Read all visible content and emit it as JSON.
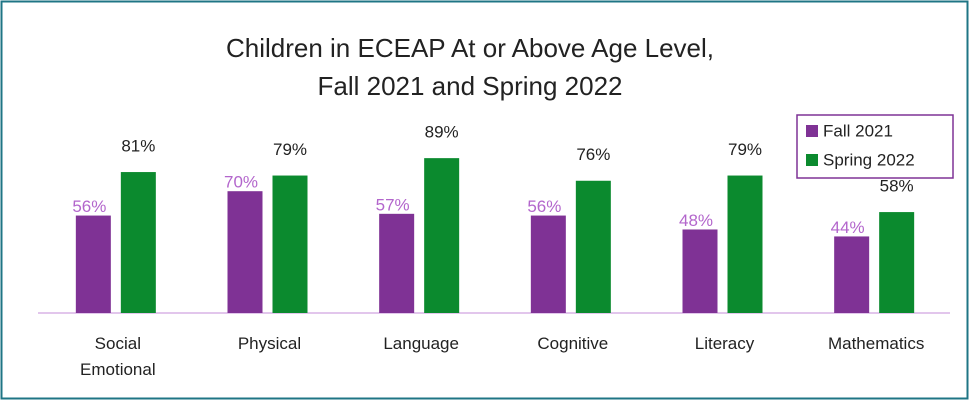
{
  "chart_data": {
    "type": "bar",
    "title": [
      "Children in ECEAP At or Above Age Level,",
      "Fall 2021 and Spring 2022"
    ],
    "categories": [
      "Social Emotional",
      "Physical",
      "Language",
      "Cognitive",
      "Literacy",
      "Mathematics"
    ],
    "series": [
      {
        "name": "Fall 2021",
        "color": "#7f3295",
        "label_color": "#b366cc",
        "values": [
          56,
          70,
          57,
          56,
          48,
          44
        ],
        "value_labels": [
          "56%",
          "70%",
          "57%",
          "56%",
          "48%",
          "44%"
        ]
      },
      {
        "name": "Spring 2022",
        "color": "#0b8a2e",
        "label_color": "#222222",
        "values": [
          81,
          79,
          89,
          76,
          79,
          58
        ],
        "value_labels": [
          "81%",
          "79%",
          "89%",
          "76%",
          "79%",
          "58%"
        ]
      }
    ],
    "ylim": [
      0,
      100
    ],
    "legend": "top-right"
  }
}
